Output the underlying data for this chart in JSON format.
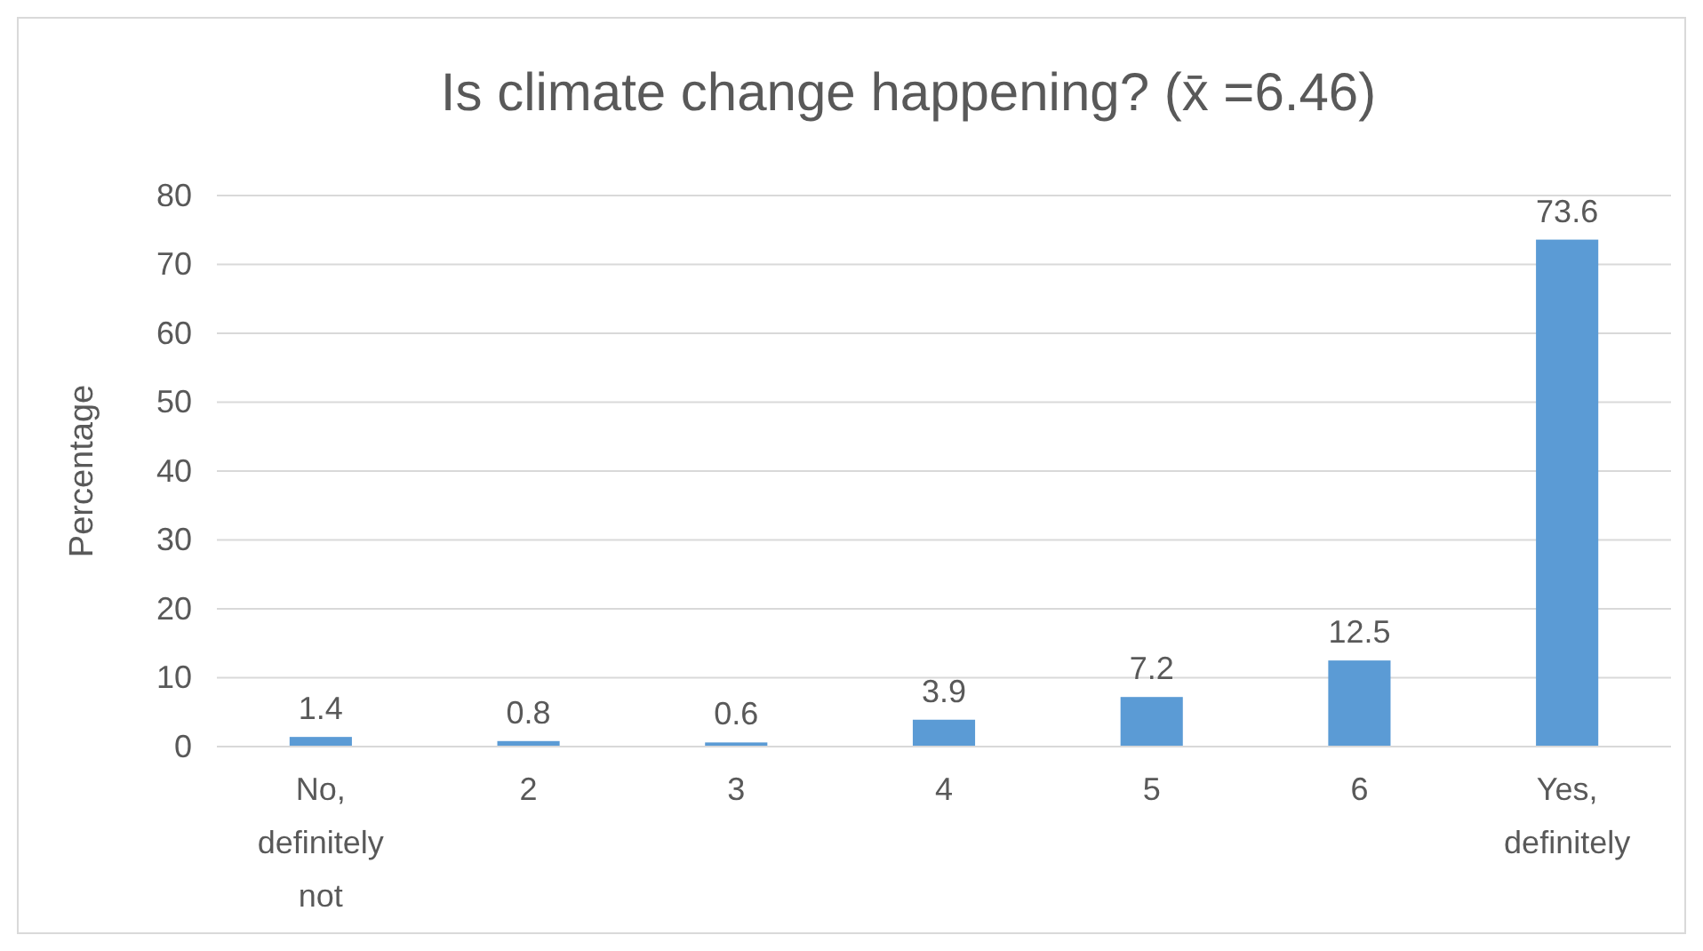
{
  "chart_data": {
    "type": "bar",
    "title": "Is climate change happening? (x̄ =6.46)",
    "ylabel": "Percentage",
    "categories": [
      "No, definitely not",
      "2",
      "3",
      "4",
      "5",
      "6",
      "Yes, definitely"
    ],
    "values": [
      1.4,
      0.8,
      0.6,
      3.9,
      7.2,
      12.5,
      73.6
    ],
    "color": "#5b9bd5",
    "ylim": [
      0,
      80
    ],
    "yticks": [
      0,
      10,
      20,
      30,
      40,
      50,
      60,
      70,
      80
    ],
    "grid": "y",
    "data_labels": true
  }
}
